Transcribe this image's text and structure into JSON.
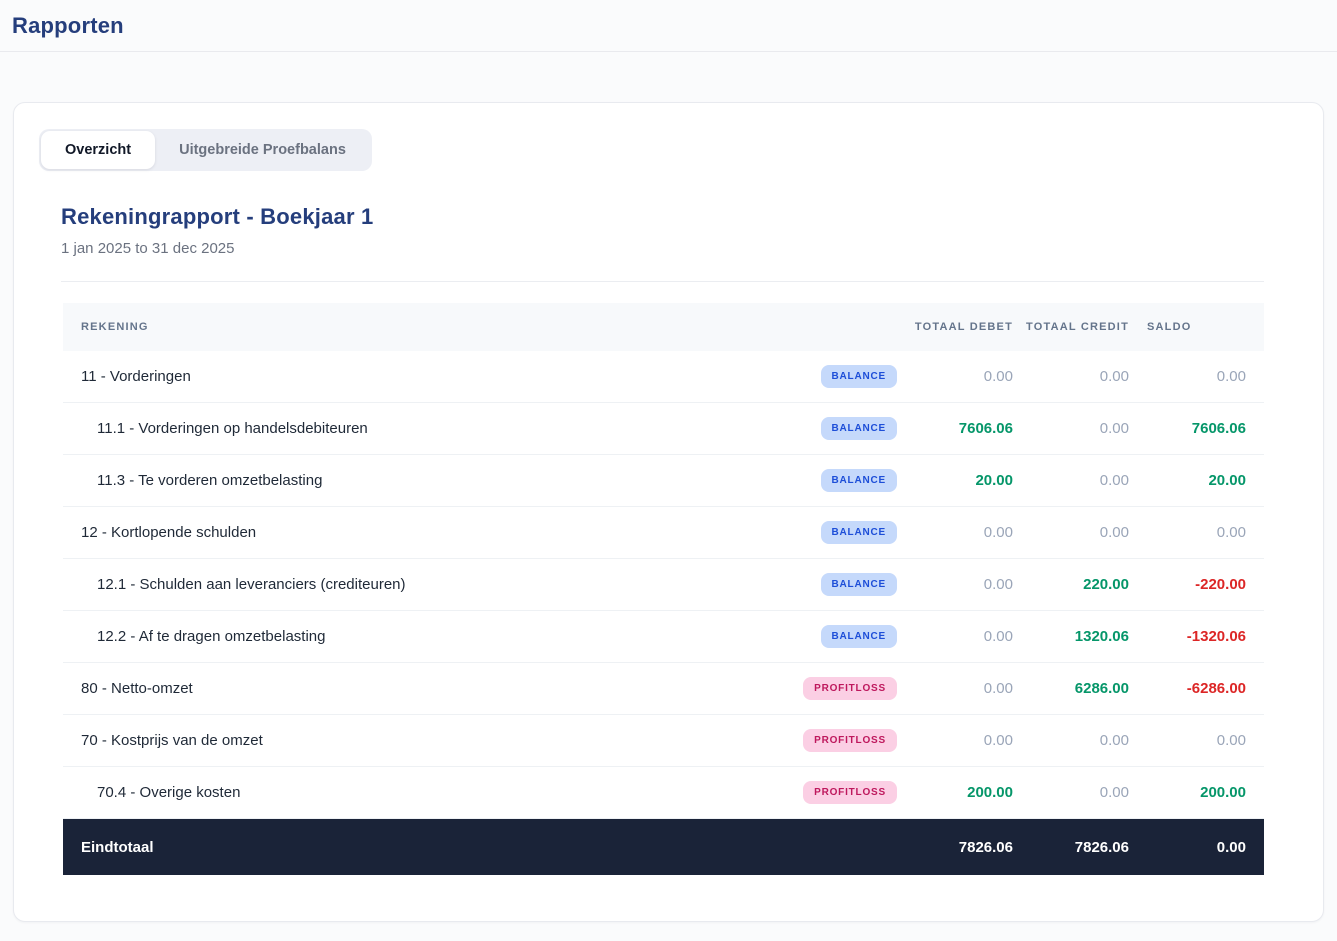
{
  "page": {
    "title": "Rapporten"
  },
  "tabs": [
    {
      "label": "Overzicht",
      "active": true
    },
    {
      "label": "Uitgebreide Proefbalans",
      "active": false
    }
  ],
  "report": {
    "title": "Rekeningrapport - Boekjaar 1",
    "period": "1 jan 2025 to 31 dec 2025"
  },
  "table": {
    "columns": [
      "Rekening",
      "Totaal Debet",
      "Totaal Credit",
      "Saldo"
    ],
    "rows": [
      {
        "account": "11 - Vorderingen",
        "indent": 0,
        "badge": "BALANCE",
        "badge_type": "balance",
        "debet": {
          "text": "0.00",
          "tone": "muted"
        },
        "credit": {
          "text": "0.00",
          "tone": "muted"
        },
        "saldo": {
          "text": "0.00",
          "tone": "muted"
        }
      },
      {
        "account": "11.1 - Vorderingen op handelsdebiteuren",
        "indent": 1,
        "badge": "BALANCE",
        "badge_type": "balance",
        "debet": {
          "text": "7606.06",
          "tone": "green"
        },
        "credit": {
          "text": "0.00",
          "tone": "muted"
        },
        "saldo": {
          "text": "7606.06",
          "tone": "green"
        }
      },
      {
        "account": "11.3 - Te vorderen omzetbelasting",
        "indent": 1,
        "badge": "BALANCE",
        "badge_type": "balance",
        "debet": {
          "text": "20.00",
          "tone": "green"
        },
        "credit": {
          "text": "0.00",
          "tone": "muted"
        },
        "saldo": {
          "text": "20.00",
          "tone": "green"
        }
      },
      {
        "account": "12 - Kortlopende schulden",
        "indent": 0,
        "badge": "BALANCE",
        "badge_type": "balance",
        "debet": {
          "text": "0.00",
          "tone": "muted"
        },
        "credit": {
          "text": "0.00",
          "tone": "muted"
        },
        "saldo": {
          "text": "0.00",
          "tone": "muted"
        }
      },
      {
        "account": "12.1 - Schulden aan leveranciers (crediteuren)",
        "indent": 1,
        "badge": "BALANCE",
        "badge_type": "balance",
        "debet": {
          "text": "0.00",
          "tone": "muted"
        },
        "credit": {
          "text": "220.00",
          "tone": "green"
        },
        "saldo": {
          "text": "-220.00",
          "tone": "red"
        }
      },
      {
        "account": "12.2 - Af te dragen omzetbelasting",
        "indent": 1,
        "badge": "BALANCE",
        "badge_type": "balance",
        "debet": {
          "text": "0.00",
          "tone": "muted"
        },
        "credit": {
          "text": "1320.06",
          "tone": "green"
        },
        "saldo": {
          "text": "-1320.06",
          "tone": "red"
        }
      },
      {
        "account": "80 - Netto-omzet",
        "indent": 0,
        "badge": "PROFITLOSS",
        "badge_type": "profitloss",
        "debet": {
          "text": "0.00",
          "tone": "muted"
        },
        "credit": {
          "text": "6286.00",
          "tone": "green"
        },
        "saldo": {
          "text": "-6286.00",
          "tone": "red"
        }
      },
      {
        "account": "70 - Kostprijs van de omzet",
        "indent": 0,
        "badge": "PROFITLOSS",
        "badge_type": "profitloss",
        "debet": {
          "text": "0.00",
          "tone": "muted"
        },
        "credit": {
          "text": "0.00",
          "tone": "muted"
        },
        "saldo": {
          "text": "0.00",
          "tone": "muted"
        }
      },
      {
        "account": "70.4 - Overige kosten",
        "indent": 1,
        "badge": "PROFITLOSS",
        "badge_type": "profitloss",
        "debet": {
          "text": "200.00",
          "tone": "green"
        },
        "credit": {
          "text": "0.00",
          "tone": "muted"
        },
        "saldo": {
          "text": "200.00",
          "tone": "green"
        }
      }
    ],
    "footer": {
      "label": "Eindtotaal",
      "debet": "7826.06",
      "credit": "7826.06",
      "saldo": "0.00"
    }
  },
  "colors": {
    "brand_navy": "#253e7c",
    "text_dark": "#1f2937",
    "muted_value": "#9aa5b8",
    "positive_green": "#059669",
    "negative_red": "#dc2626",
    "badge_balance_bg": "#c5d9fb",
    "badge_balance_text": "#1d4ed8",
    "badge_profitloss_bg": "#fbcfe4",
    "badge_profitloss_text": "#be185d",
    "footer_bg": "#1a2338"
  }
}
